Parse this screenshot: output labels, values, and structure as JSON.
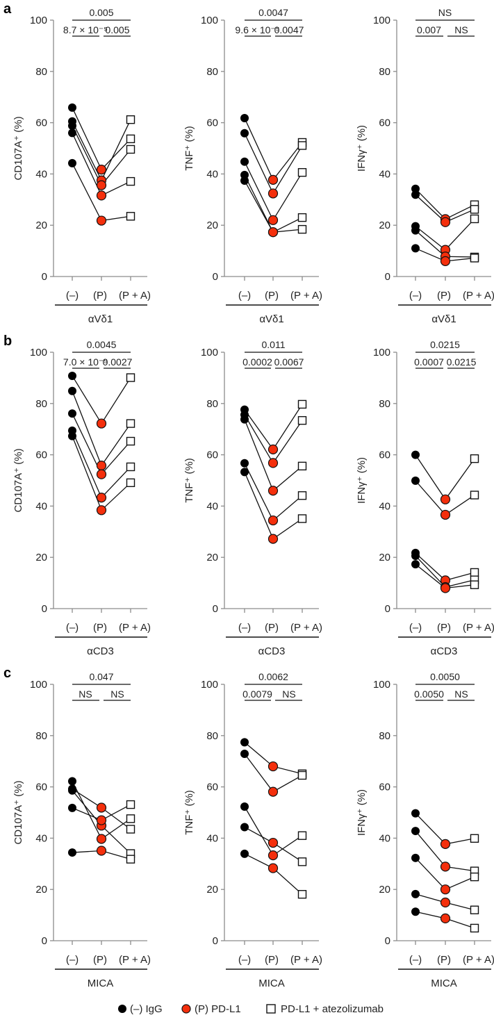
{
  "colors": {
    "igg": "#000000",
    "pdl1": "#f42f0c",
    "atezo": "#ffffff",
    "axis": "#8c8c8c",
    "line": "#111111"
  },
  "legend": [
    {
      "marker": "black-circle",
      "label": "(–) IgG"
    },
    {
      "marker": "red-circle",
      "label": "(P) PD-L1"
    },
    {
      "marker": "open-square",
      "label": "PD-L1 + atezolizumab"
    }
  ],
  "chart_data": [
    {
      "panel": "a",
      "type": "line",
      "ylabel": "CD107A⁺ (%)",
      "ylim": [
        0,
        100
      ],
      "yticks": [
        "0",
        "20",
        "40",
        "60",
        "80",
        "100"
      ],
      "categories": [
        "(–)",
        "(P)",
        "(P + A)"
      ],
      "group": "αVδ1",
      "pvalues": {
        "outer": "0.005",
        "left": "8.7 × 10⁻⁵",
        "right": "0.005"
      },
      "series": [
        [
          65.9,
          41.7,
          53.7
        ],
        [
          60.5,
          37.5,
          61.2
        ],
        [
          58.8,
          35.6,
          49.6
        ],
        [
          56.0,
          31.6,
          37.1
        ],
        [
          44.2,
          21.8,
          23.5
        ]
      ]
    },
    {
      "panel": "",
      "type": "line",
      "ylabel": "TNF⁺ (%)",
      "ylim": [
        0,
        100
      ],
      "yticks": [
        "0",
        "20",
        "40",
        "60",
        "80",
        "100"
      ],
      "categories": [
        "(–)",
        "(P)",
        "(P + A)"
      ],
      "group": "αVδ1",
      "pvalues": {
        "outer": "0.0047",
        "left": "9.6 × 10⁻⁵",
        "right": "0.0047"
      },
      "series": [
        [
          61.8,
          37.7,
          52.3
        ],
        [
          55.9,
          32.4,
          51.1
        ],
        [
          44.8,
          22.0,
          40.6
        ],
        [
          39.6,
          17.3,
          23.0
        ],
        [
          37.4,
          17.3,
          18.4
        ]
      ]
    },
    {
      "panel": "",
      "type": "line",
      "ylabel": "IFNγ⁺ (%)",
      "ylim": [
        0,
        100
      ],
      "yticks": [
        "0",
        "20",
        "40",
        "60",
        "80",
        "100"
      ],
      "categories": [
        "(–)",
        "(P)",
        "(P + A)"
      ],
      "group": "αVδ1",
      "pvalues": {
        "outer": "NS",
        "left": "0.007",
        "right": "NS"
      },
      "series": [
        [
          34.2,
          22.4,
          28.0
        ],
        [
          31.9,
          21.2,
          26.2
        ],
        [
          19.6,
          10.4,
          22.5
        ],
        [
          18.0,
          7.8,
          7.6
        ],
        [
          11.0,
          6.0,
          7.2
        ]
      ]
    },
    {
      "panel": "b",
      "type": "line",
      "ylabel": "CD107A⁺ (%)",
      "ylim": [
        0,
        100
      ],
      "yticks": [
        "0",
        "20",
        "40",
        "60",
        "80",
        "100"
      ],
      "categories": [
        "(–)",
        "(P)",
        "(P + A)"
      ],
      "group": "αCD3",
      "pvalues": {
        "outer": "0.0045",
        "left": "7.0 × 10⁻⁵",
        "right": "0.0027"
      },
      "series": [
        [
          90.8,
          72.2,
          90.1
        ],
        [
          84.9,
          55.8,
          72.2
        ],
        [
          76.1,
          52.4,
          65.3
        ],
        [
          69.4,
          43.3,
          55.3
        ],
        [
          67.3,
          38.4,
          49.1
        ]
      ]
    },
    {
      "panel": "",
      "type": "line",
      "ylabel": "TNF⁺ (%)",
      "ylim": [
        0,
        100
      ],
      "yticks": [
        "0",
        "20",
        "40",
        "60",
        "80",
        "100"
      ],
      "categories": [
        "(–)",
        "(P)",
        "(P + A)"
      ],
      "group": "αCD3",
      "pvalues": {
        "outer": "0.011",
        "left": "0.0002",
        "right": "0.0067"
      },
      "series": [
        [
          77.6,
          62.1,
          79.7
        ],
        [
          75.6,
          56.8,
          73.4
        ],
        [
          73.8,
          46.0,
          55.6
        ],
        [
          56.7,
          34.4,
          44.1
        ],
        [
          53.3,
          27.2,
          35.1
        ]
      ]
    },
    {
      "panel": "",
      "type": "line",
      "ylabel": "IFNγ⁺ (%)",
      "ylim": [
        0,
        100
      ],
      "yticks": [
        "0",
        "20",
        "40",
        "60",
        "80",
        "100"
      ],
      "categories": [
        "(–)",
        "(P)",
        "(P + A)"
      ],
      "group": "αCD3",
      "pvalues": {
        "outer": "0.0215",
        "left": "0.0007",
        "right": "0.0215"
      },
      "series": [
        [
          60.0,
          42.6,
          58.5
        ],
        [
          49.9,
          36.6,
          44.3
        ],
        [
          21.7,
          11.0,
          14.1
        ],
        [
          20.6,
          8.4,
          11.2
        ],
        [
          17.3,
          8.0,
          9.3
        ]
      ]
    },
    {
      "panel": "c",
      "type": "line",
      "ylabel": "CD107A⁺ (%)",
      "ylim": [
        0,
        100
      ],
      "yticks": [
        "0",
        "20",
        "40",
        "60",
        "80",
        "100"
      ],
      "categories": [
        "(–)",
        "(P)",
        "(P + A)"
      ],
      "group": "MICA",
      "pvalues": {
        "outer": "0.047",
        "left": "NS",
        "right": "NS"
      },
      "series": [
        [
          62.2,
          39.7,
          47.6
        ],
        [
          59.2,
          51.9,
          43.5
        ],
        [
          58.6,
          44.9,
          34.0
        ],
        [
          51.8,
          47.0,
          53.1
        ],
        [
          34.4,
          35.1,
          31.8
        ]
      ]
    },
    {
      "panel": "",
      "type": "line",
      "ylabel": "TNF⁺ (%)",
      "ylim": [
        0,
        100
      ],
      "yticks": [
        "0",
        "20",
        "40",
        "60",
        "80",
        "100"
      ],
      "categories": [
        "(–)",
        "(P)",
        "(P + A)"
      ],
      "group": "MICA",
      "pvalues": {
        "outer": "0.0062",
        "left": "0.0079",
        "right": "NS"
      },
      "series": [
        [
          77.4,
          68.0,
          65.1
        ],
        [
          72.9,
          58.1,
          64.5
        ],
        [
          52.3,
          33.3,
          41.0
        ],
        [
          44.3,
          38.2,
          30.8
        ],
        [
          33.9,
          28.3,
          18.1
        ]
      ]
    },
    {
      "panel": "",
      "type": "line",
      "ylabel": "IFNγ⁺ (%)",
      "ylim": [
        0,
        100
      ],
      "yticks": [
        "0",
        "20",
        "40",
        "60",
        "80",
        "100"
      ],
      "categories": [
        "(–)",
        "(P)",
        "(P + A)"
      ],
      "group": "MICA",
      "pvalues": {
        "outer": "0.0050",
        "left": "0.0050",
        "right": "NS"
      },
      "series": [
        [
          49.7,
          37.7,
          39.9
        ],
        [
          42.8,
          28.9,
          27.2
        ],
        [
          32.3,
          20.0,
          24.9
        ],
        [
          18.2,
          14.9,
          12.0
        ],
        [
          11.3,
          8.7,
          4.9
        ]
      ]
    }
  ]
}
